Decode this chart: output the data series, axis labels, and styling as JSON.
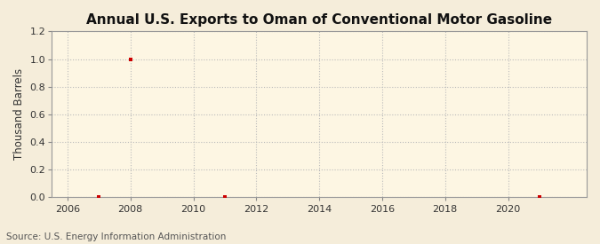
{
  "title": "Annual U.S. Exports to Oman of Conventional Motor Gasoline",
  "ylabel": "Thousand Barrels",
  "source": "Source: U.S. Energy Information Administration",
  "background_color": "#f5edda",
  "plot_background_color": "#fdf6e3",
  "years": [
    2007,
    2008,
    2011,
    2021
  ],
  "values": [
    0.0,
    1.0,
    0.0,
    0.0
  ],
  "marker_color": "#cc0000",
  "marker": "s",
  "marker_size": 3,
  "xlim": [
    2005.5,
    2022.5
  ],
  "ylim": [
    0.0,
    1.2
  ],
  "yticks": [
    0.0,
    0.2,
    0.4,
    0.6,
    0.8,
    1.0,
    1.2
  ],
  "xticks": [
    2006,
    2008,
    2010,
    2012,
    2014,
    2016,
    2018,
    2020
  ],
  "grid_color": "#bbbbbb",
  "grid_linestyle": ":",
  "title_fontsize": 11,
  "label_fontsize": 8.5,
  "tick_fontsize": 8,
  "source_fontsize": 7.5
}
